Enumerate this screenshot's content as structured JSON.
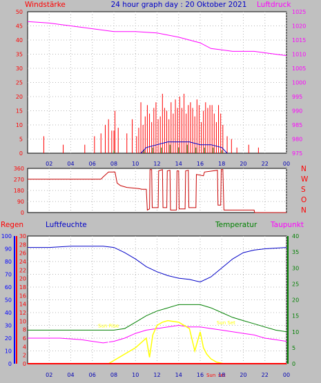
{
  "title": "24 hour graph day : 20 Oktober 2021",
  "colors": {
    "background": "#c0c0c0",
    "plot": "#ffffff",
    "grid": "#b4b4b4",
    "wind": "#ff0000",
    "gust": "#0000c8",
    "windavg": "#008000",
    "pressure": "#ff00ff",
    "direction": "#c80000",
    "rain": "#ff0000",
    "humidity": "#0000c8",
    "temperature": "#008000",
    "dewpoint": "#ff00ff",
    "solar": "#ffff00",
    "axis_blue": "#0000ff"
  },
  "x_ticks": [
    "02",
    "04",
    "06",
    "08",
    "10",
    "12",
    "14",
    "16",
    "18",
    "20",
    "22",
    "00"
  ],
  "chart_data": [
    {
      "type": "line",
      "name": "wind-pressure",
      "labels": {
        "left": "Windstärke",
        "right": "Luftdruck"
      },
      "yleft": {
        "min": 0,
        "max": 50,
        "ticks": [
          0,
          5,
          10,
          15,
          20,
          25,
          30,
          35,
          40,
          45,
          50
        ]
      },
      "yright": {
        "min": 975,
        "max": 1025,
        "ticks": [
          975,
          980,
          985,
          990,
          995,
          1000,
          1005,
          1010,
          1015,
          1020,
          1025
        ]
      },
      "xlim": [
        0,
        24
      ],
      "series": [
        {
          "key": "pressure",
          "axis": "right",
          "points": [
            [
              0,
              1021.5
            ],
            [
              2,
              1021
            ],
            [
              4,
              1020
            ],
            [
              6,
              1019
            ],
            [
              8,
              1018
            ],
            [
              10,
              1018
            ],
            [
              12,
              1017.5
            ],
            [
              14,
              1016
            ],
            [
              16,
              1014
            ],
            [
              17,
              1012
            ],
            [
              18,
              1011.5
            ],
            [
              19,
              1011
            ],
            [
              20,
              1011
            ],
            [
              21,
              1011
            ],
            [
              22,
              1010.5
            ],
            [
              24,
              1009.5
            ]
          ]
        },
        {
          "key": "wind",
          "axis": "left",
          "kind": "spikes",
          "hours": [
            1.5,
            3.3,
            5.3,
            6.2,
            6.8,
            7.2,
            7.5,
            7.8,
            8.0,
            8.1,
            8.4,
            9.2,
            9.7,
            10.1,
            10.3,
            10.5,
            10.7,
            10.9,
            11.1,
            11.3,
            11.5,
            11.7,
            11.9,
            12.1,
            12.3,
            12.5,
            12.7,
            12.9,
            13.1,
            13.3,
            13.5,
            13.7,
            13.9,
            14.1,
            14.3,
            14.5,
            14.7,
            14.9,
            15.1,
            15.3,
            15.5,
            15.7,
            15.9,
            16.1,
            16.3,
            16.5,
            16.7,
            16.9,
            17.1,
            17.3,
            17.5,
            17.7,
            17.9,
            18.1,
            18.5,
            18.9,
            19.4,
            20.5,
            21.4
          ],
          "values": [
            6,
            3,
            3,
            6,
            7,
            10,
            12,
            8,
            8,
            15,
            9,
            7,
            12,
            6,
            9,
            18,
            10,
            13,
            17,
            14,
            11,
            16,
            18,
            12,
            13,
            21,
            16,
            15,
            12,
            18,
            14,
            19,
            16,
            20,
            16,
            21,
            14,
            17,
            18,
            16,
            13,
            19,
            17,
            11,
            15,
            18,
            16,
            17,
            17,
            14,
            11,
            17,
            14,
            10,
            6,
            5,
            2,
            3,
            2
          ]
        },
        {
          "key": "gust",
          "axis": "left",
          "points": [
            [
              10.5,
              0
            ],
            [
              11,
              2
            ],
            [
              12,
              3
            ],
            [
              13,
              4
            ],
            [
              14,
              4
            ],
            [
              15,
              4
            ],
            [
              16,
              3
            ],
            [
              17,
              3
            ],
            [
              18,
              2
            ],
            [
              18.5,
              0
            ]
          ]
        },
        {
          "key": "windavg",
          "axis": "left",
          "kind": "spikes",
          "hours": [
            8,
            10.8,
            11.6,
            12.4,
            13.2,
            14,
            14.8,
            15.6,
            16.4,
            17.2,
            18
          ],
          "values": [
            1,
            1,
            2,
            2,
            3,
            2,
            3,
            2,
            2,
            2,
            1
          ]
        }
      ]
    },
    {
      "type": "line",
      "name": "wind-direction",
      "yleft": {
        "min": 0,
        "max": 360,
        "ticks": [
          0,
          90,
          180,
          270,
          360
        ]
      },
      "yright_labels": [
        "N",
        "W",
        "S",
        "O",
        "N"
      ],
      "xlim": [
        0,
        24
      ],
      "series": [
        {
          "key": "direction",
          "points": [
            [
              0,
              272
            ],
            [
              6.8,
              272
            ],
            [
              7.0,
              290
            ],
            [
              7.5,
              330
            ],
            [
              8.1,
              330
            ],
            [
              8.3,
              240
            ],
            [
              8.6,
              220
            ],
            [
              9.2,
              205
            ],
            [
              10.3,
              195
            ],
            [
              10.6,
              190
            ],
            [
              11.0,
              190
            ],
            [
              11.1,
              20
            ],
            [
              11.3,
              30
            ],
            [
              11.35,
              350
            ],
            [
              11.5,
              350
            ],
            [
              11.55,
              40
            ],
            [
              12.1,
              40
            ],
            [
              12.15,
              340
            ],
            [
              12.5,
              350
            ],
            [
              12.55,
              40
            ],
            [
              12.9,
              40
            ],
            [
              12.95,
              340
            ],
            [
              13.2,
              345
            ],
            [
              13.25,
              20
            ],
            [
              13.8,
              20
            ],
            [
              13.85,
              340
            ],
            [
              14.0,
              340
            ],
            [
              14.05,
              30
            ],
            [
              14.6,
              30
            ],
            [
              14.65,
              340
            ],
            [
              14.9,
              345
            ],
            [
              14.95,
              40
            ],
            [
              15.6,
              40
            ],
            [
              15.65,
              310
            ],
            [
              16.3,
              300
            ],
            [
              16.4,
              330
            ],
            [
              17.6,
              345
            ],
            [
              17.65,
              60
            ],
            [
              17.9,
              60
            ],
            [
              17.95,
              350
            ],
            [
              18.1,
              350
            ],
            [
              18.2,
              20
            ],
            [
              21.0,
              20
            ],
            [
              21.05,
              0
            ],
            [
              24,
              0
            ]
          ]
        }
      ]
    },
    {
      "type": "line",
      "name": "rain-humidity-temperature",
      "labels": {
        "rain": "Regen",
        "humidity": "Luftfeuchte",
        "temperature": "Temperatur",
        "dewpoint": "Taupunkt"
      },
      "y_rain": {
        "min": 0,
        "max": 30,
        "ticks": [
          0,
          2,
          4,
          6,
          8,
          10,
          12,
          14,
          16,
          18,
          20,
          22,
          24,
          26,
          28,
          30
        ]
      },
      "y_humidity": {
        "min": 0,
        "max": 100,
        "ticks": [
          0,
          10,
          20,
          30,
          40,
          50,
          60,
          70,
          80,
          90,
          100
        ]
      },
      "y_temperature": {
        "min": 0,
        "max": 40,
        "ticks": [
          0,
          5,
          10,
          15,
          20,
          25,
          30,
          35,
          40
        ]
      },
      "y_dewpoint": {
        "min": 0,
        "max": 40
      },
      "xlim": [
        0,
        24
      ],
      "annotations": [
        {
          "text": "Sun Rise",
          "x": 7.5
        },
        {
          "text": "Sun Set",
          "x": 18.2
        },
        {
          "text": "Sun",
          "x": 17.0
        },
        {
          "text": "set",
          "x": 18.0
        }
      ],
      "series": [
        {
          "key": "humidity",
          "axis": "humidity",
          "points": [
            [
              0,
              91
            ],
            [
              2,
              91
            ],
            [
              4,
              92
            ],
            [
              5,
              92
            ],
            [
              7,
              92
            ],
            [
              8,
              91
            ],
            [
              9,
              87
            ],
            [
              10,
              82
            ],
            [
              11,
              76
            ],
            [
              12,
              72
            ],
            [
              13,
              69
            ],
            [
              14,
              67
            ],
            [
              15,
              66
            ],
            [
              16,
              64
            ],
            [
              17,
              68
            ],
            [
              18,
              75
            ],
            [
              19,
              82
            ],
            [
              20,
              87
            ],
            [
              21,
              89
            ],
            [
              22,
              90
            ],
            [
              24,
              91
            ]
          ]
        },
        {
          "key": "temperature",
          "axis": "temperature",
          "points": [
            [
              0,
              10.5
            ],
            [
              4,
              10.5
            ],
            [
              5,
              10.5
            ],
            [
              6,
              10.5
            ],
            [
              7,
              10.5
            ],
            [
              8,
              10.5
            ],
            [
              9,
              11
            ],
            [
              10,
              13
            ],
            [
              11,
              15
            ],
            [
              12,
              16.5
            ],
            [
              13,
              17.5
            ],
            [
              14,
              18.5
            ],
            [
              15,
              18.5
            ],
            [
              16,
              18.5
            ],
            [
              17,
              17.5
            ],
            [
              18,
              16
            ],
            [
              19,
              14.5
            ],
            [
              20,
              13.5
            ],
            [
              21,
              12.5
            ],
            [
              22,
              11.5
            ],
            [
              23,
              10.5
            ],
            [
              24,
              10
            ]
          ]
        },
        {
          "key": "dewpoint",
          "axis": "dewpoint",
          "points": [
            [
              0,
              8
            ],
            [
              3,
              8
            ],
            [
              5,
              7.5
            ],
            [
              6,
              7
            ],
            [
              7,
              6.5
            ],
            [
              8,
              7
            ],
            [
              9,
              8
            ],
            [
              10,
              9.5
            ],
            [
              11,
              10.5
            ],
            [
              12,
              11
            ],
            [
              13,
              11.5
            ],
            [
              14,
              12
            ],
            [
              15,
              11.5
            ],
            [
              16,
              11.5
            ],
            [
              17,
              11
            ],
            [
              18,
              10.5
            ],
            [
              19,
              10
            ],
            [
              20,
              9.5
            ],
            [
              21,
              9
            ],
            [
              22,
              8
            ],
            [
              23,
              7.5
            ],
            [
              24,
              7
            ]
          ]
        },
        {
          "key": "solar",
          "axis": "temperature",
          "points": [
            [
              7.5,
              0
            ],
            [
              8,
              1
            ],
            [
              9,
              3
            ],
            [
              10,
              5
            ],
            [
              11,
              8
            ],
            [
              11.3,
              2
            ],
            [
              11.6,
              9
            ],
            [
              12,
              12
            ],
            [
              12.5,
              13
            ],
            [
              13,
              13.5
            ],
            [
              14,
              13
            ],
            [
              15,
              11
            ],
            [
              15.5,
              4
            ],
            [
              16,
              10
            ],
            [
              16.3,
              5
            ],
            [
              16.6,
              3
            ],
            [
              17,
              1.5
            ],
            [
              17.5,
              0.5
            ],
            [
              18.2,
              0
            ]
          ]
        },
        {
          "key": "rain",
          "axis": "rain",
          "points": [
            [
              0,
              0
            ],
            [
              24,
              0
            ]
          ]
        }
      ]
    }
  ]
}
